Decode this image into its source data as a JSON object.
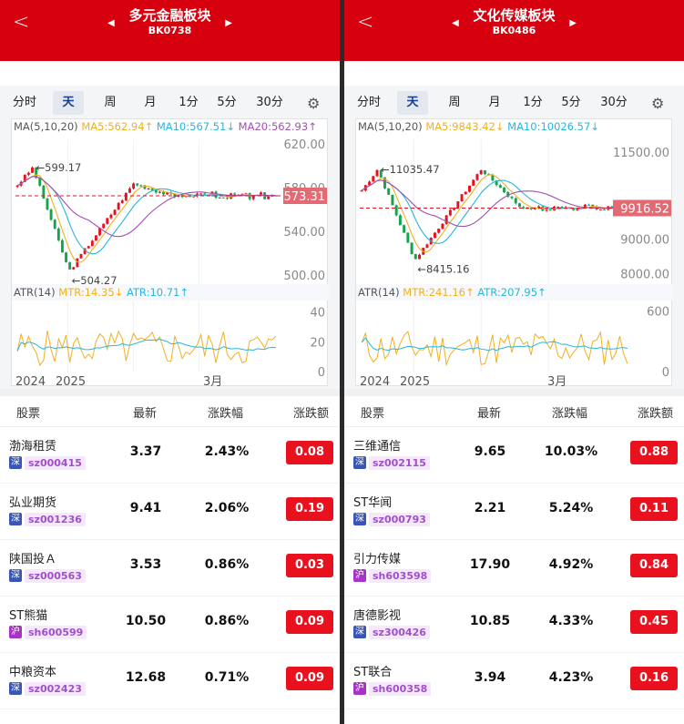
{
  "colors": {
    "header": "#d7000f",
    "up": "#e8111d",
    "down": "#17a34a",
    "ma5": "#f0b020",
    "ma10": "#28b5e0",
    "ma20": "#a050b0",
    "atr": "#f0b020",
    "atrma": "#28b5e0"
  },
  "boards": [
    {
      "name": "多元金融板块",
      "code": "BK0738",
      "tabs": [
        "分时",
        "天",
        "周",
        "月",
        "1分",
        "5分",
        "30分"
      ],
      "active_tab": "天",
      "legend": {
        "ma": "MA(5,10,20)",
        "ma5": "MA5:562.94↑",
        "ma10": "MA10:567.51↓",
        "ma20": "MA20:562.93↑"
      },
      "y_ticks": [
        "620.00",
        "580.00",
        "540.00",
        "500.00"
      ],
      "y_range": [
        495,
        625
      ],
      "last_price_tag": "573.31",
      "last_price": 573.31,
      "hi_label": "←599.17",
      "hi_value": 599.17,
      "lo_label": "←504.27",
      "lo_value": 504.27,
      "atr_legend": {
        "atr": "ATR(14)",
        "mtr": "MTR:14.35↓",
        "atrv": "ATR:10.71↑"
      },
      "atr_ticks": [
        "40",
        "20",
        "0"
      ],
      "atr_range": [
        0,
        44
      ],
      "x_labels": [
        "2024",
        "2025",
        "3月"
      ],
      "table_headers": [
        "股票",
        "最新",
        "涨跌幅",
        "涨跌额"
      ],
      "stocks": [
        {
          "name": "渤海租赁",
          "market": "深",
          "code": "sz000415",
          "price": "3.37",
          "pct": "2.43%",
          "chg": "0.08"
        },
        {
          "name": "弘业期货",
          "market": "深",
          "code": "sz001236",
          "price": "9.41",
          "pct": "2.06%",
          "chg": "0.19"
        },
        {
          "name": "陕国投Ａ",
          "market": "深",
          "code": "sz000563",
          "price": "3.53",
          "pct": "0.86%",
          "chg": "0.03"
        },
        {
          "name": "ST熊猫",
          "market": "沪",
          "code": "sh600599",
          "price": "10.50",
          "pct": "0.86%",
          "chg": "0.09"
        },
        {
          "name": "中粮资本",
          "market": "深",
          "code": "sz002423",
          "price": "12.68",
          "pct": "0.71%",
          "chg": "0.09"
        }
      ]
    },
    {
      "name": "文化传媒板块",
      "code": "BK0486",
      "tabs": [
        "分时",
        "天",
        "周",
        "月",
        "1分",
        "5分",
        "30分"
      ],
      "active_tab": "天",
      "legend": {
        "ma": "MA(5,10,20)",
        "ma5": "MA5:9843.42↓",
        "ma10": "MA10:10026.57↓",
        "ma20": ""
      },
      "y_ticks": [
        "11500.00",
        "10000.00",
        "9000.00",
        "8000.00"
      ],
      "y_range": [
        7800,
        11900
      ],
      "last_price_tag": "9916.52",
      "last_price": 9916.52,
      "hi_label": "←11035.47",
      "hi_value": 11035.47,
      "lo_label": "←8415.16",
      "lo_value": 8415.16,
      "atr_legend": {
        "atr": "ATR(14)",
        "mtr": "MTR:241.16↑",
        "atrv": "ATR:207.95↑"
      },
      "atr_ticks": [
        "600",
        "0"
      ],
      "atr_range": [
        0,
        650
      ],
      "x_labels": [
        "2024",
        "2025",
        "3月"
      ],
      "table_headers": [
        "股票",
        "最新",
        "涨跌幅",
        "涨跌额"
      ],
      "stocks": [
        {
          "name": "三维通信",
          "market": "深",
          "code": "sz002115",
          "price": "9.65",
          "pct": "10.03%",
          "chg": "0.88"
        },
        {
          "name": "ST华闻",
          "market": "深",
          "code": "sz000793",
          "price": "2.21",
          "pct": "5.24%",
          "chg": "0.11"
        },
        {
          "name": "引力传媒",
          "market": "沪",
          "code": "sh603598",
          "price": "17.90",
          "pct": "4.92%",
          "chg": "0.84"
        },
        {
          "name": "唐德影视",
          "market": "深",
          "code": "sz300426",
          "price": "10.85",
          "pct": "4.33%",
          "chg": "0.45"
        },
        {
          "name": "ST联合",
          "market": "沪",
          "code": "sh600358",
          "price": "3.94",
          "pct": "4.23%",
          "chg": "0.16"
        }
      ]
    }
  ]
}
